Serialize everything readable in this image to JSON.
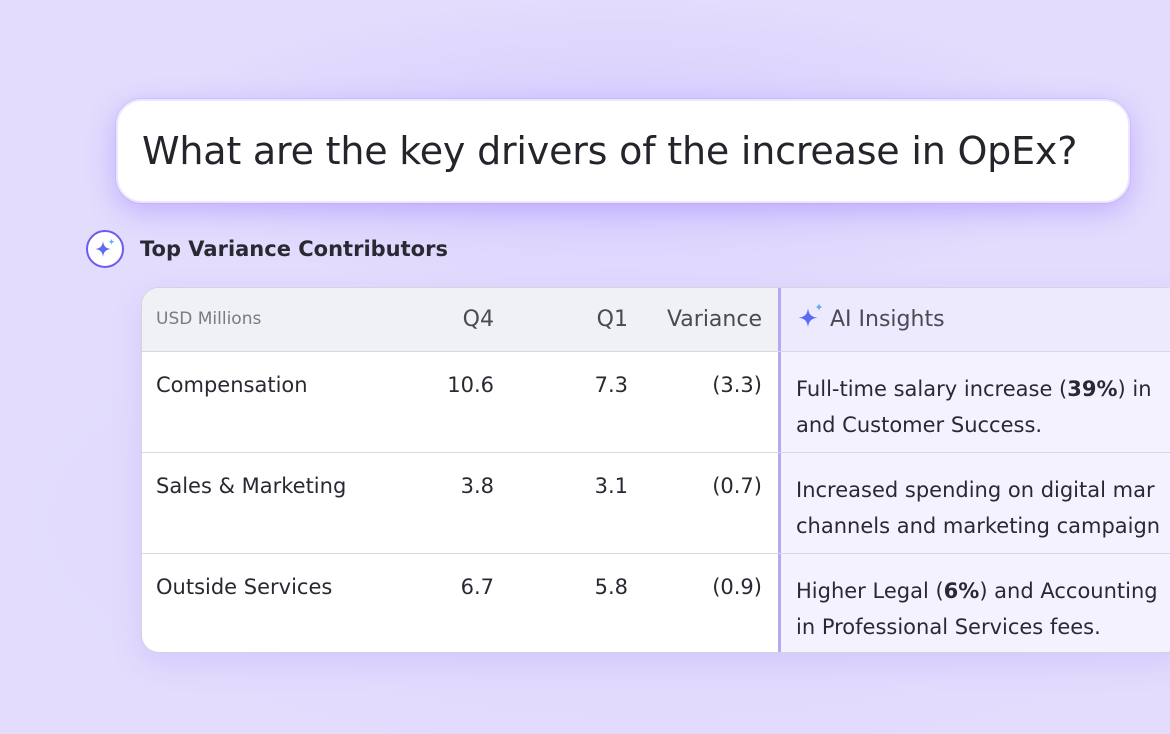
{
  "query": {
    "text": "What are the key drivers of the increase in OpEx?"
  },
  "section": {
    "title": "Top Variance Contributors",
    "icon": "sparkle-icon"
  },
  "table": {
    "headers": {
      "label": "USD Millions",
      "q4": "Q4",
      "q1": "Q1",
      "variance": "Variance",
      "insights": "AI Insights"
    },
    "rows": [
      {
        "label": "Compensation",
        "q4": "10.6",
        "q1": "7.3",
        "variance": "(3.3)",
        "insight_l1_pre": "Full-time salary increase (",
        "insight_l1_bold": "39%",
        "insight_l1_post": ") in",
        "insight_l2": "and Customer Success."
      },
      {
        "label": "Sales & Marketing",
        "q4": "3.8",
        "q1": "3.1",
        "variance": "(0.7)",
        "insight_l1_pre": "Increased spending on digital mar",
        "insight_l1_bold": "",
        "insight_l1_post": "",
        "insight_l2": "channels and marketing campaign"
      },
      {
        "label": "Outside Services",
        "q4": "6.7",
        "q1": "5.8",
        "variance": "(0.9)",
        "insight_l1_pre": "Higher Legal (",
        "insight_l1_bold": "6%",
        "insight_l1_post": ") and Accounting",
        "insight_l2": "in Professional Services fees."
      }
    ]
  },
  "colors": {
    "background": "#e3dcfd",
    "accent": "#6a5cf0",
    "insight_column": "#f5f2ff",
    "insight_border": "#b7a8f6"
  }
}
